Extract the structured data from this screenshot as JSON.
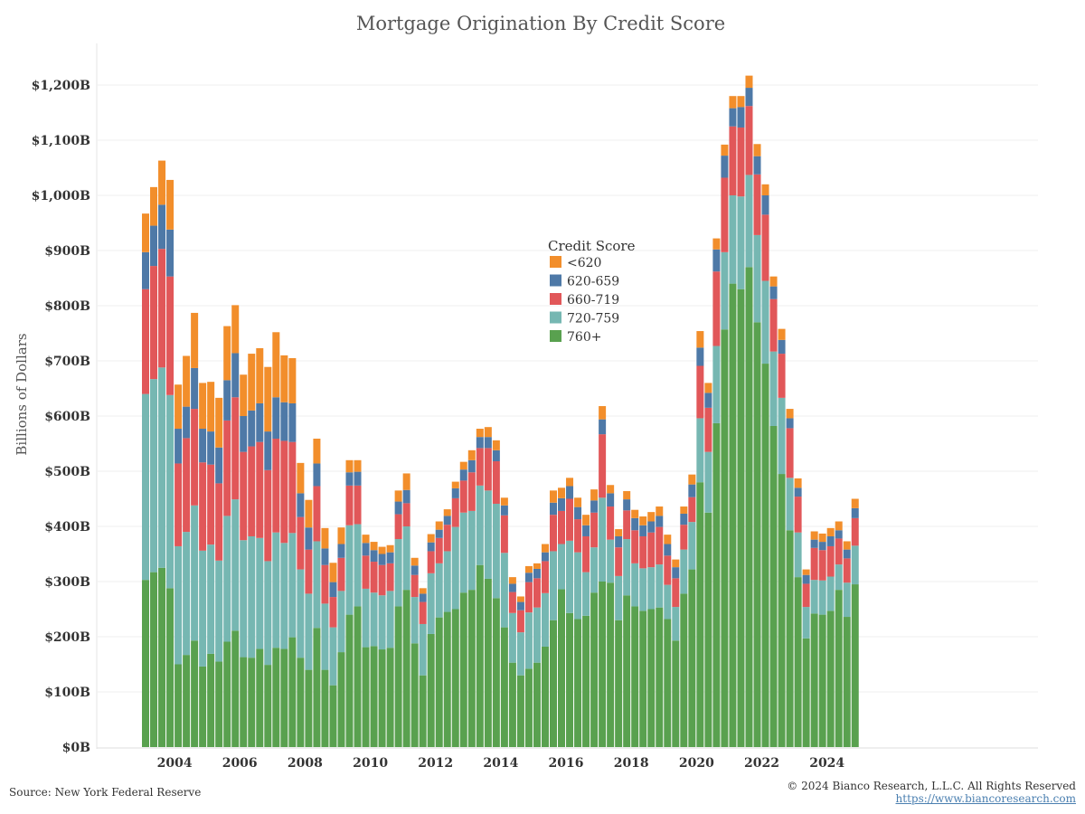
{
  "chart_data": {
    "type": "bar",
    "stacked": true,
    "title": "Mortgage Origination By Credit Score",
    "ylabel": "Billions of Dollars",
    "ylim": [
      0,
      1270
    ],
    "yticks": [
      0,
      100,
      200,
      300,
      400,
      500,
      600,
      700,
      800,
      900,
      1000,
      1100,
      1200
    ],
    "ytick_labels": [
      "$0B",
      "$100B",
      "$200B",
      "$300B",
      "$400B",
      "$500B",
      "$600B",
      "$700B",
      "$800B",
      "$900B",
      "$1,000B",
      "$1,100B",
      "$1,200B"
    ],
    "xticks": [
      "2004",
      "2006",
      "2008",
      "2010",
      "2012",
      "2014",
      "2016",
      "2018",
      "2020",
      "2022",
      "2024"
    ],
    "x_start_year": 2003,
    "grid": true,
    "legend_title": "Credit Score",
    "legend_position": "top-center",
    "series": [
      {
        "name": "760+",
        "color": "#59a14f",
        "values": [
          303,
          317,
          325,
          288,
          150,
          167,
          193,
          146,
          169,
          155,
          191,
          211,
          163,
          162,
          178,
          149,
          180,
          178,
          199,
          162,
          140,
          216,
          140,
          112,
          172,
          240,
          255,
          181,
          183,
          177,
          180,
          255,
          285,
          188,
          130,
          205,
          235,
          245,
          250,
          280,
          285,
          330,
          305,
          270,
          217,
          153,
          130,
          142,
          153,
          182,
          230,
          286,
          243,
          232,
          238,
          280,
          300,
          298,
          230,
          275,
          255,
          247,
          250,
          253,
          232,
          193,
          278,
          322,
          480,
          425,
          587,
          757,
          840,
          830,
          870,
          770,
          695,
          582,
          495,
          393,
          308,
          197,
          242,
          240,
          247,
          285,
          236,
          295
        ]
      },
      {
        "name": "720-759",
        "color": "#76b7b2",
        "values": [
          337,
          350,
          363,
          350,
          214,
          223,
          245,
          210,
          198,
          183,
          228,
          238,
          212,
          220,
          201,
          188,
          209,
          192,
          189,
          160,
          138,
          157,
          120,
          105,
          111,
          162,
          149,
          106,
          97,
          98,
          103,
          122,
          115,
          84,
          93,
          110,
          98,
          110,
          149,
          145,
          143,
          144,
          160,
          171,
          135,
          90,
          78,
          102,
          100,
          97,
          125,
          82,
          131,
          121,
          79,
          82,
          152,
          78,
          80,
          102,
          78,
          77,
          76,
          78,
          62,
          61,
          80,
          86,
          116,
          110,
          140,
          140,
          160,
          168,
          167,
          158,
          150,
          135,
          138,
          95,
          81,
          57,
          61,
          62,
          62,
          46,
          62,
          70
        ]
      },
      {
        "name": "660-719",
        "color": "#e15759",
        "values": [
          190,
          205,
          215,
          215,
          150,
          170,
          175,
          160,
          145,
          140,
          173,
          185,
          160,
          163,
          174,
          165,
          170,
          185,
          165,
          95,
          80,
          100,
          70,
          55,
          60,
          72,
          70,
          60,
          56,
          55,
          50,
          45,
          42,
          40,
          40,
          40,
          46,
          48,
          52,
          58,
          70,
          68,
          77,
          77,
          68,
          38,
          40,
          55,
          53,
          58,
          66,
          60,
          76,
          60,
          65,
          63,
          115,
          60,
          52,
          52,
          60,
          58,
          63,
          68,
          53,
          52,
          45,
          45,
          95,
          80,
          135,
          135,
          125,
          125,
          125,
          110,
          120,
          95,
          80,
          90,
          65,
          42,
          58,
          55,
          55,
          47,
          44,
          50
        ]
      },
      {
        "name": "620-659",
        "color": "#4e79a7",
        "values": [
          67,
          73,
          80,
          85,
          63,
          57,
          74,
          61,
          60,
          65,
          73,
          80,
          65,
          65,
          70,
          70,
          75,
          70,
          70,
          43,
          40,
          41,
          30,
          27,
          25,
          24,
          25,
          23,
          21,
          20,
          20,
          23,
          24,
          17,
          15,
          16,
          15,
          16,
          18,
          20,
          22,
          20,
          20,
          20,
          18,
          15,
          15,
          17,
          17,
          16,
          22,
          23,
          23,
          22,
          20,
          22,
          27,
          24,
          20,
          20,
          22,
          20,
          20,
          20,
          21,
          20,
          20,
          23,
          33,
          27,
          40,
          40,
          33,
          37,
          33,
          33,
          35,
          23,
          25,
          18,
          16,
          16,
          15,
          15,
          18,
          15,
          16,
          18
        ]
      },
      {
        "name": "<620",
        "color": "#f28e2b",
        "values": [
          70,
          70,
          80,
          90,
          80,
          92,
          100,
          83,
          90,
          90,
          98,
          87,
          75,
          103,
          100,
          117,
          118,
          85,
          82,
          55,
          50,
          45,
          37,
          35,
          30,
          22,
          21,
          15,
          15,
          13,
          13,
          20,
          30,
          14,
          10,
          15,
          15,
          12,
          12,
          14,
          18,
          15,
          18,
          18,
          14,
          12,
          10,
          12,
          10,
          15,
          22,
          19,
          15,
          17,
          19,
          20,
          24,
          15,
          13,
          15,
          15,
          16,
          17,
          17,
          17,
          14,
          13,
          18,
          30,
          18,
          20,
          20,
          22,
          20,
          22,
          22,
          20,
          18,
          20,
          17,
          17,
          10,
          15,
          15,
          15,
          16,
          15,
          17
        ]
      }
    ]
  },
  "footer": {
    "source": "Source: New York Federal Reserve",
    "copyright": "© 2024 Bianco Research, L.L.C. All Rights Reserved",
    "url": "https://www.biancoresearch.com"
  }
}
